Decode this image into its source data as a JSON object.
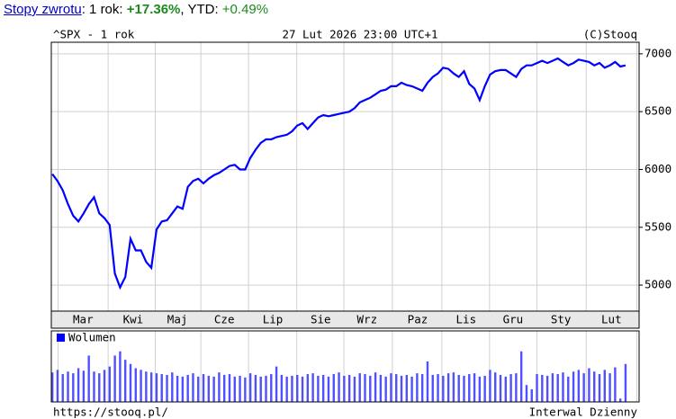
{
  "header": {
    "link": "Stopy zwrotu",
    "part1": ": 1 rok: ",
    "return_1y": "+17.36%",
    "part2": ", YTD: ",
    "return_ytd": "+0.49%"
  },
  "chart_data": {
    "type": "line",
    "title": "^SPX - 1 rok",
    "date": "27 Lut 2026 23:00 UTC+1",
    "source": "(C)Stooq",
    "footer_left": "https://stooq.pl/",
    "footer_right": "Interwal Dzienny",
    "color": "#0000ff",
    "grid": true,
    "values": [
      5960,
      5900,
      5820,
      5700,
      5600,
      5550,
      5620,
      5700,
      5760,
      5620,
      5580,
      5520,
      5100,
      4980,
      5070,
      5400,
      5300,
      5300,
      5200,
      5150,
      5480,
      5550,
      5560,
      5620,
      5680,
      5660,
      5850,
      5900,
      5920,
      5880,
      5920,
      5950,
      5970,
      6000,
      6030,
      6040,
      6000,
      6000,
      6100,
      6170,
      6230,
      6260,
      6260,
      6280,
      6290,
      6300,
      6330,
      6380,
      6400,
      6350,
      6400,
      6450,
      6470,
      6460,
      6470,
      6480,
      6490,
      6500,
      6530,
      6580,
      6600,
      6620,
      6650,
      6680,
      6690,
      6720,
      6720,
      6750,
      6730,
      6720,
      6700,
      6680,
      6750,
      6800,
      6830,
      6880,
      6870,
      6830,
      6800,
      6850,
      6740,
      6700,
      6600,
      6720,
      6820,
      6850,
      6860,
      6860,
      6830,
      6800,
      6870,
      6900,
      6900,
      6920,
      6940,
      6920,
      6940,
      6960,
      6930,
      6900,
      6920,
      6950,
      6940,
      6930,
      6900,
      6920,
      6880,
      6900,
      6930,
      6890,
      6900
    ],
    "xlim": [
      -0.2,
      112.6
    ],
    "xticks": [
      {
        "value": 5.9,
        "label": "Mar"
      },
      {
        "value": 15.5,
        "label": "Kwi"
      },
      {
        "value": 24.0,
        "label": "Maj"
      },
      {
        "value": 33.0,
        "label": "Cze"
      },
      {
        "value": 42.3,
        "label": "Lip"
      },
      {
        "value": 51.5,
        "label": "Sie"
      },
      {
        "value": 60.4,
        "label": "Wrz"
      },
      {
        "value": 70.1,
        "label": "Paz"
      },
      {
        "value": 79.4,
        "label": "Lis"
      },
      {
        "value": 88.4,
        "label": "Gru"
      },
      {
        "value": 97.6,
        "label": "Sty"
      },
      {
        "value": 107.3,
        "label": "Lut"
      }
    ],
    "ylim": [
      4775,
      7100
    ],
    "yticks": [
      5000,
      5500,
      6000,
      6500,
      7000
    ],
    "volume": {
      "name": "Wolumen",
      "color": "#0000ff",
      "ylim": [
        0,
        80
      ],
      "values": [
        35,
        38,
        33,
        36,
        34,
        40,
        37,
        55,
        36,
        34,
        38,
        42,
        55,
        60,
        50,
        45,
        40,
        38,
        36,
        35,
        34,
        33,
        32,
        35,
        31,
        30,
        32,
        34,
        30,
        33,
        31,
        30,
        35,
        32,
        33,
        30,
        31,
        29,
        34,
        32,
        30,
        31,
        33,
        42,
        32,
        30,
        31,
        32,
        30,
        33,
        34,
        31,
        32,
        30,
        33,
        35,
        31,
        32,
        30,
        34,
        33,
        31,
        35,
        32,
        30,
        34,
        33,
        31,
        32,
        30,
        34,
        33,
        48,
        32,
        33,
        31,
        34,
        35,
        32,
        31,
        33,
        34,
        30,
        31,
        38,
        35,
        32,
        30,
        33,
        34,
        60,
        20,
        15,
        33,
        32,
        31,
        34,
        33,
        35,
        30,
        36,
        38,
        34,
        40,
        36,
        33,
        38,
        34,
        41,
        4,
        45
      ]
    }
  }
}
